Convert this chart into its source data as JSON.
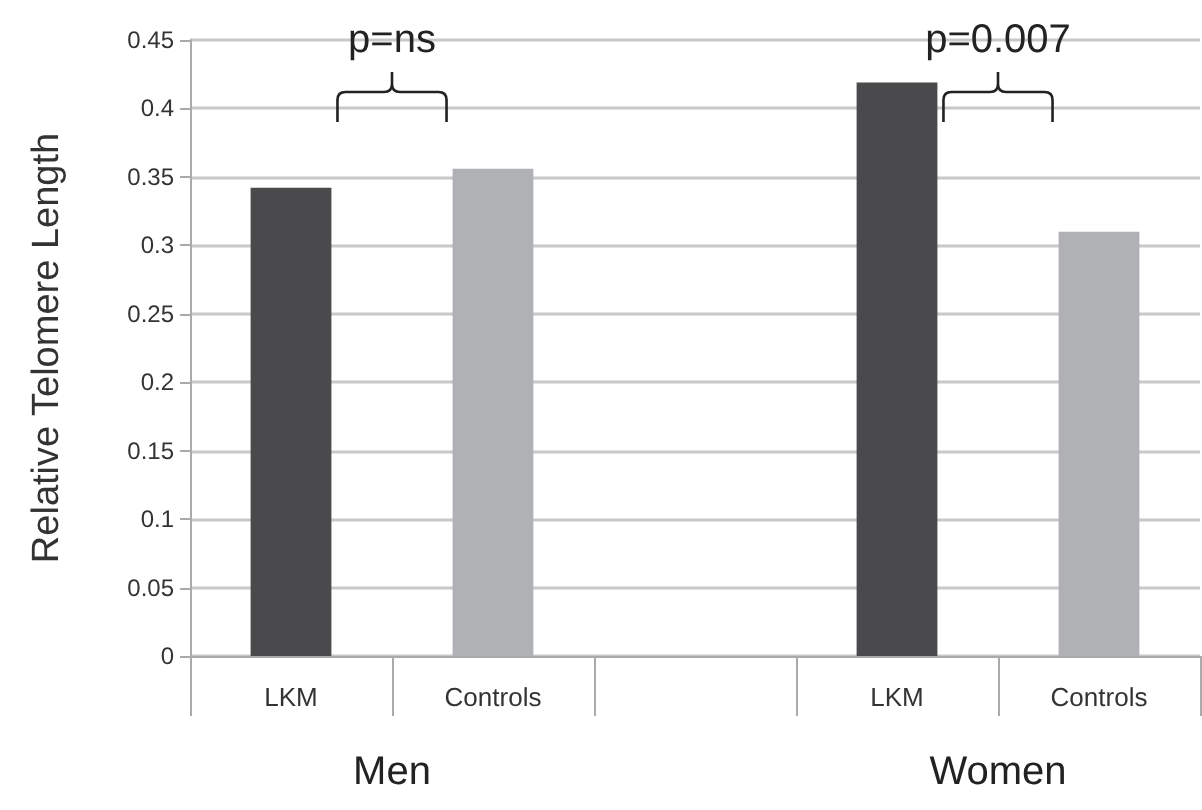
{
  "chart_data": {
    "type": "bar",
    "ylabel": "Relative Telomere Length",
    "categories": [
      "LKM",
      "Controls",
      null,
      "LKM",
      "Controls"
    ],
    "values": [
      0.342,
      0.356,
      null,
      0.419,
      0.31
    ],
    "colors": [
      "#4a4a4c",
      "#b0b1b5",
      null,
      "#4a4a4c",
      "#b0b1b5"
    ],
    "ylim": [
      0,
      0.45
    ],
    "yticks": [
      0,
      0.05,
      0.1,
      0.15,
      0.2,
      0.25,
      0.3,
      0.35,
      0.4,
      0.45
    ],
    "grid": "y",
    "annotations": [
      "p=ns",
      "p=0.007",
      "Men",
      "Women"
    ]
  }
}
